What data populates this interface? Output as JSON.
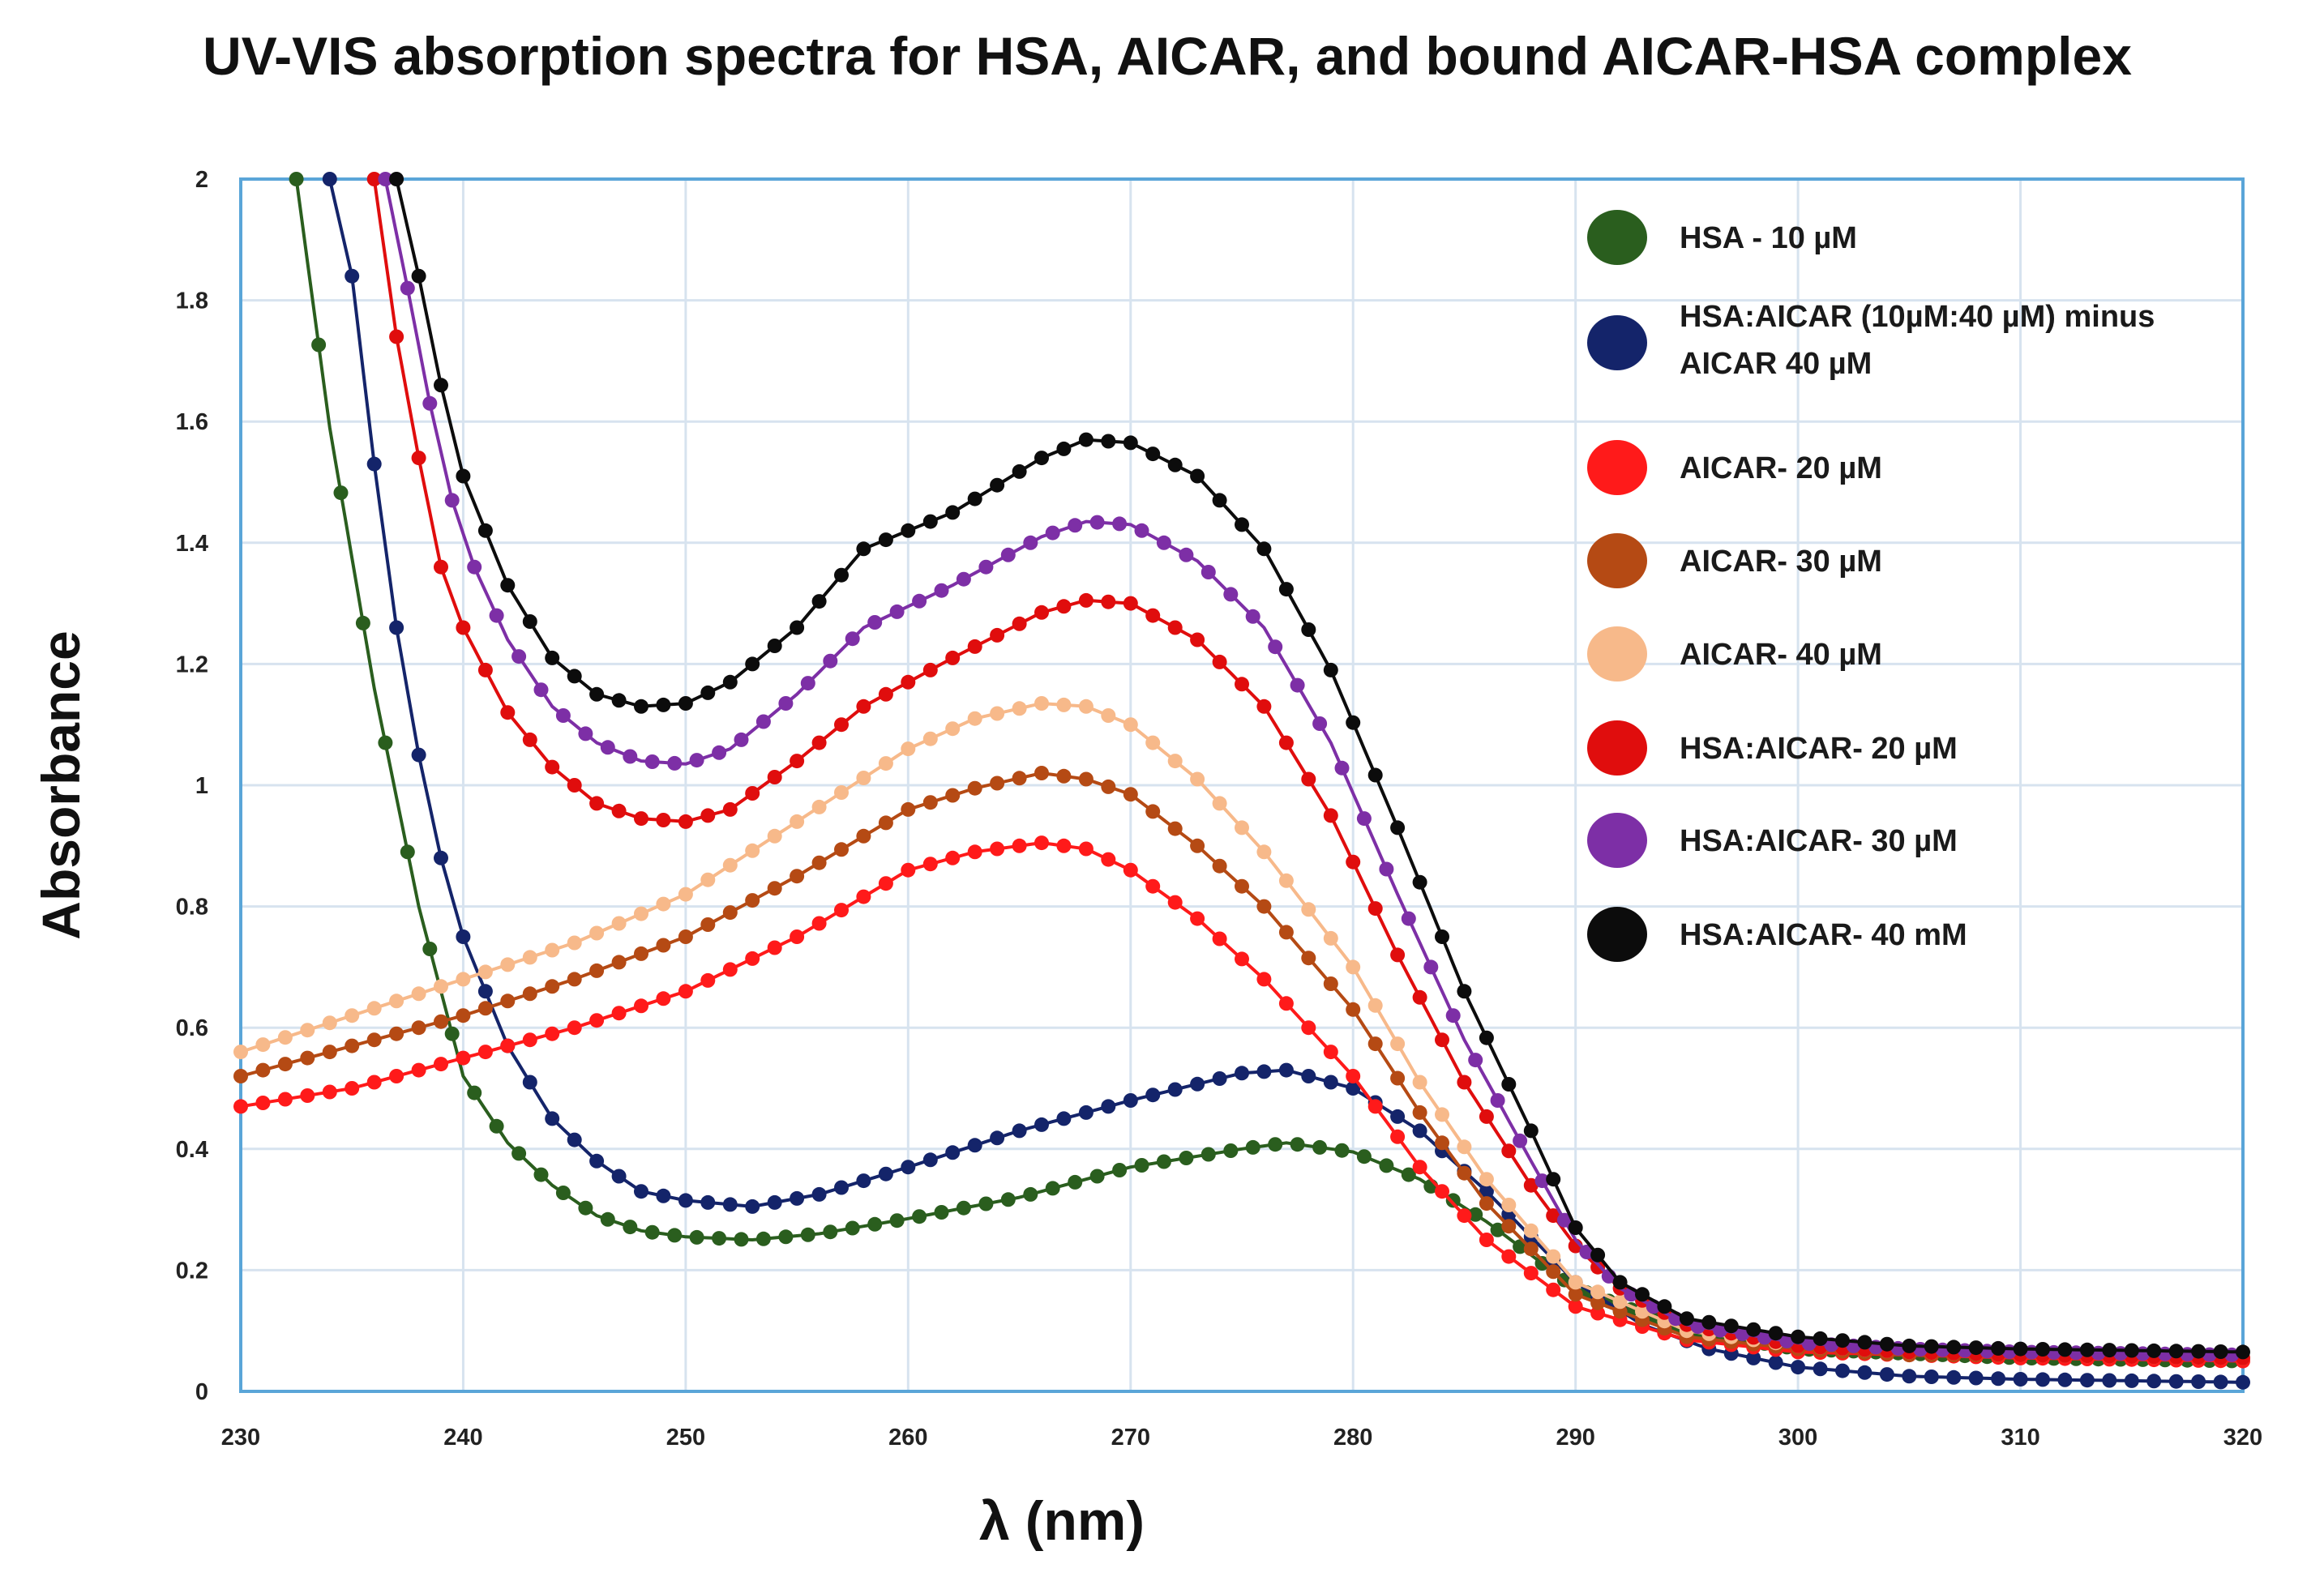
{
  "chart_data": {
    "type": "line",
    "title": "UV-VIS absorption spectra for HSA,  AICAR, and bound AICAR-HSA complex",
    "xlabel": "λ (nm)",
    "ylabel": "Absorbance",
    "xlim": [
      230,
      320
    ],
    "ylim": [
      0,
      2
    ],
    "xticks": [
      230,
      240,
      250,
      260,
      270,
      280,
      290,
      300,
      310,
      320
    ],
    "yticks": [
      0,
      0.2,
      0.4,
      0.6,
      0.8,
      1,
      1.2,
      1.4,
      1.6,
      1.8,
      2
    ],
    "ytick_labels": [
      "0",
      "0.2",
      "0.4",
      "0.6",
      "0.8",
      "1",
      "1.2",
      "1.4",
      "1.6",
      "1.8",
      "2"
    ],
    "grid": true,
    "legend_position": "top-right",
    "series": [
      {
        "name": "HSA - 10 µM",
        "legend_lines": [
          "HSA - 10 µM"
        ],
        "color": "#2a5e1e",
        "x": [
          232.5,
          234,
          236,
          238,
          240,
          242,
          244,
          246,
          248,
          250,
          253,
          256,
          260,
          265,
          270,
          275,
          277,
          280,
          283,
          286,
          290,
          295,
          300,
          310,
          320
        ],
        "y": [
          2.0,
          1.59,
          1.16,
          0.8,
          0.52,
          0.41,
          0.34,
          0.29,
          0.265,
          0.255,
          0.25,
          0.26,
          0.285,
          0.32,
          0.37,
          0.4,
          0.41,
          0.395,
          0.35,
          0.28,
          0.17,
          0.1,
          0.07,
          0.055,
          0.05
        ]
      },
      {
        "name": "HSA:AICAR (10µM:40 µM) minus AICAR 40 µM",
        "legend_lines": [
          "HSA:AICAR (10µM:40 µM) minus",
          "AICAR 40 µM"
        ],
        "color": "#14246a",
        "x": [
          234,
          235,
          236,
          237,
          238,
          239,
          240,
          242,
          244,
          246,
          248,
          250,
          253,
          256,
          260,
          265,
          270,
          275,
          277,
          280,
          283,
          286,
          290,
          293,
          296,
          300,
          305,
          310,
          320
        ],
        "y": [
          2.0,
          1.84,
          1.53,
          1.26,
          1.05,
          0.88,
          0.75,
          0.57,
          0.45,
          0.38,
          0.33,
          0.315,
          0.305,
          0.325,
          0.37,
          0.43,
          0.48,
          0.525,
          0.53,
          0.5,
          0.43,
          0.33,
          0.18,
          0.11,
          0.07,
          0.04,
          0.025,
          0.02,
          0.015
        ]
      },
      {
        "name": "AICAR- 20 µM",
        "legend_lines": [
          "AICAR- 20 µM"
        ],
        "color": "#ff1a1a",
        "x": [
          230,
          235,
          240,
          245,
          250,
          255,
          260,
          263,
          266,
          268,
          270,
          273,
          276,
          280,
          283,
          286,
          290,
          295,
          300,
          305,
          310,
          320
        ],
        "y": [
          0.47,
          0.5,
          0.55,
          0.6,
          0.66,
          0.75,
          0.86,
          0.89,
          0.905,
          0.895,
          0.86,
          0.78,
          0.68,
          0.52,
          0.37,
          0.25,
          0.14,
          0.085,
          0.065,
          0.06,
          0.055,
          0.05
        ]
      },
      {
        "name": "AICAR- 30 µM",
        "legend_lines": [
          "AICAR- 30 µM"
        ],
        "color": "#b54a14",
        "x": [
          230,
          235,
          240,
          245,
          250,
          255,
          260,
          263,
          266,
          268,
          270,
          273,
          276,
          280,
          283,
          286,
          290,
          295,
          300,
          305,
          310,
          320
        ],
        "y": [
          0.52,
          0.57,
          0.62,
          0.68,
          0.75,
          0.85,
          0.96,
          0.995,
          1.02,
          1.01,
          0.985,
          0.9,
          0.8,
          0.63,
          0.46,
          0.31,
          0.16,
          0.09,
          0.07,
          0.06,
          0.06,
          0.055
        ]
      },
      {
        "name": "AICAR- 40 µM",
        "legend_lines": [
          "AICAR- 40 µM"
        ],
        "color": "#f7b98a",
        "x": [
          230,
          235,
          240,
          245,
          250,
          255,
          260,
          263,
          266,
          268,
          270,
          273,
          276,
          280,
          283,
          286,
          290,
          295,
          300,
          305,
          310,
          320
        ],
        "y": [
          0.56,
          0.62,
          0.68,
          0.74,
          0.82,
          0.94,
          1.06,
          1.11,
          1.135,
          1.13,
          1.1,
          1.01,
          0.89,
          0.7,
          0.51,
          0.35,
          0.18,
          0.1,
          0.075,
          0.065,
          0.06,
          0.055
        ]
      },
      {
        "name": "HSA:AICAR- 20 µM",
        "legend_lines": [
          "HSA:AICAR- 20 µM"
        ],
        "color": "#e00d0d",
        "x": [
          236,
          237,
          238,
          239,
          240,
          242,
          244,
          246,
          248,
          250,
          252,
          255,
          258,
          262,
          266,
          268,
          270,
          273,
          276,
          279,
          282,
          285,
          288,
          290,
          292,
          295,
          300,
          305,
          310,
          320
        ],
        "y": [
          2.0,
          1.74,
          1.54,
          1.36,
          1.26,
          1.12,
          1.03,
          0.97,
          0.945,
          0.94,
          0.96,
          1.04,
          1.13,
          1.21,
          1.285,
          1.305,
          1.3,
          1.24,
          1.13,
          0.95,
          0.72,
          0.51,
          0.34,
          0.24,
          0.17,
          0.11,
          0.075,
          0.065,
          0.06,
          0.055
        ]
      },
      {
        "name": "HSA:AICAR- 30 µM",
        "legend_lines": [
          "HSA:AICAR- 30 µM"
        ],
        "color": "#7d2fa6",
        "x": [
          236.5,
          237.5,
          238.5,
          239.5,
          240.5,
          242,
          244,
          246,
          248,
          250,
          252,
          255,
          258,
          262,
          266,
          268,
          270,
          273,
          276,
          279,
          282,
          285,
          288,
          290,
          292,
          295,
          300,
          305,
          310,
          320
        ],
        "y": [
          2.0,
          1.82,
          1.63,
          1.47,
          1.36,
          1.24,
          1.13,
          1.07,
          1.04,
          1.035,
          1.06,
          1.15,
          1.26,
          1.33,
          1.41,
          1.435,
          1.43,
          1.37,
          1.26,
          1.07,
          0.82,
          0.58,
          0.38,
          0.25,
          0.17,
          0.11,
          0.08,
          0.07,
          0.065,
          0.06
        ]
      },
      {
        "name": "HSA:AICAR- 40 mM",
        "legend_lines": [
          "HSA:AICAR- 40 mM"
        ],
        "color": "#0c0c0c",
        "x": [
          237,
          238,
          239,
          240,
          241,
          242,
          244,
          246,
          248,
          250,
          252,
          255,
          258,
          262,
          266,
          268,
          270,
          273,
          276,
          279,
          282,
          285,
          288,
          290,
          292,
          295,
          300,
          305,
          310,
          320
        ],
        "y": [
          2.0,
          1.84,
          1.66,
          1.51,
          1.42,
          1.33,
          1.21,
          1.15,
          1.13,
          1.135,
          1.17,
          1.26,
          1.39,
          1.45,
          1.54,
          1.57,
          1.565,
          1.51,
          1.39,
          1.19,
          0.93,
          0.66,
          0.43,
          0.27,
          0.18,
          0.12,
          0.09,
          0.075,
          0.07,
          0.065
        ]
      }
    ]
  }
}
